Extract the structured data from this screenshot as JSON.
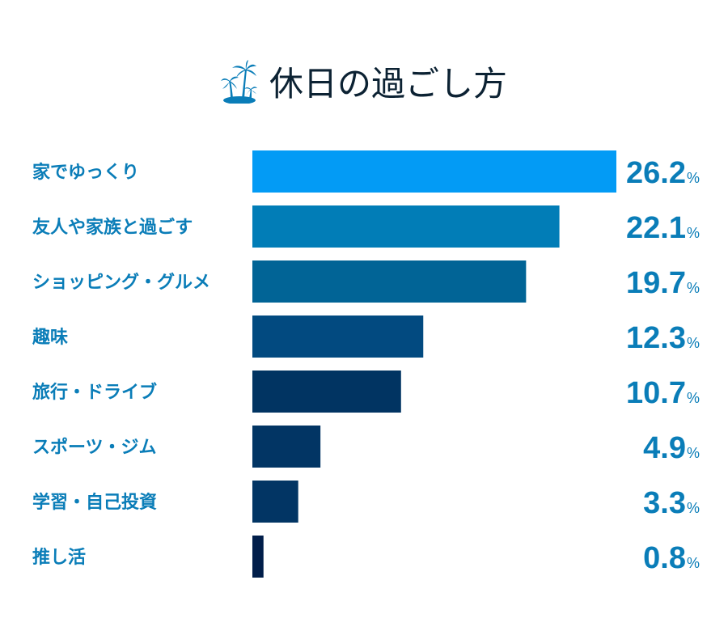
{
  "chart_data": {
    "type": "bar",
    "orientation": "horizontal",
    "title": "休日の過ごし方",
    "title_icon": "palm-tree-island-icon",
    "categories": [
      "家でゆっくり",
      "友人や家族と過ごす",
      "ショッピング・グルメ",
      "趣味",
      "旅行・ドライブ",
      "スポーツ・ジム",
      "学習・自己投資",
      "推し活"
    ],
    "values": [
      26.2,
      22.1,
      19.7,
      12.3,
      10.7,
      4.9,
      3.3,
      0.8
    ],
    "value_suffix": "%",
    "colors": [
      "#039bf5",
      "#017db7",
      "#016496",
      "#024a80",
      "#013462",
      "#023564",
      "#023564",
      "#011e4a"
    ],
    "label_color": "#0a7db8",
    "grid": false,
    "legend": "none"
  }
}
